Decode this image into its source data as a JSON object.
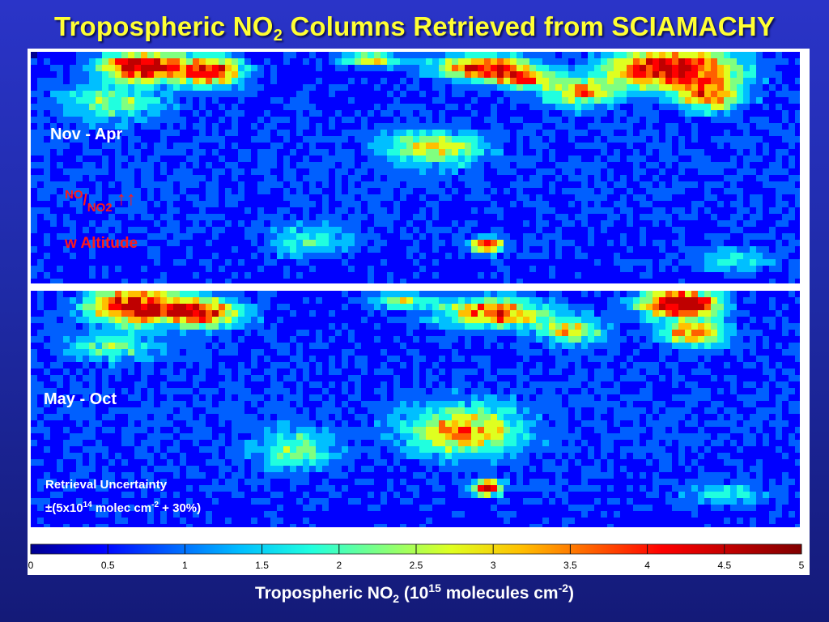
{
  "title": {
    "pre": "Tropospheric NO",
    "sub": "2",
    "post": " Columns Retrieved from SCIAMACHY"
  },
  "panels": {
    "top_label": "Nov - Apr",
    "bottom_label": "May - Oct"
  },
  "annotation": {
    "ratio_num": "NO",
    "slash": "/",
    "ratio_den": "NO2",
    "arrows": "↑↑",
    "altitude": "w Altitude"
  },
  "uncertainty": {
    "line1": "Retrieval Uncertainty",
    "line2_pre": "±(5x10",
    "line2_sup1": "14",
    "line2_mid": " molec cm",
    "line2_sup2": "-2",
    "line2_post": " + 30%)"
  },
  "xlabel": {
    "pre": "Tropospheric NO",
    "sub": "2",
    "mid": " (10",
    "sup1": "15",
    "mid2": " molecules cm",
    "sup2": "-2",
    "post": ")"
  },
  "chart_data": {
    "type": "heatmap",
    "title": "Tropospheric NO2 Columns Retrieved from SCIAMACHY",
    "panels": [
      "Nov - Apr",
      "May - Oct"
    ],
    "colorbar": {
      "label": "Tropospheric NO2 (10^15 molecules cm^-2)",
      "range": [
        0,
        5
      ],
      "ticks": [
        0,
        0.5,
        1,
        1.5,
        2,
        2.5,
        3,
        3.5,
        4,
        4.5,
        5
      ],
      "tick_labels": [
        "0",
        "0.5",
        "1",
        "1.5",
        "2",
        "2.5",
        "3",
        "3.5",
        "4",
        "4.5",
        "5"
      ],
      "colors": [
        "#00008f",
        "#0000ff",
        "#0060ff",
        "#00bfff",
        "#20ffdf",
        "#80ff80",
        "#dfff20",
        "#ffbf00",
        "#ff6000",
        "#ff0000",
        "#bf0000",
        "#800000"
      ]
    }
  }
}
